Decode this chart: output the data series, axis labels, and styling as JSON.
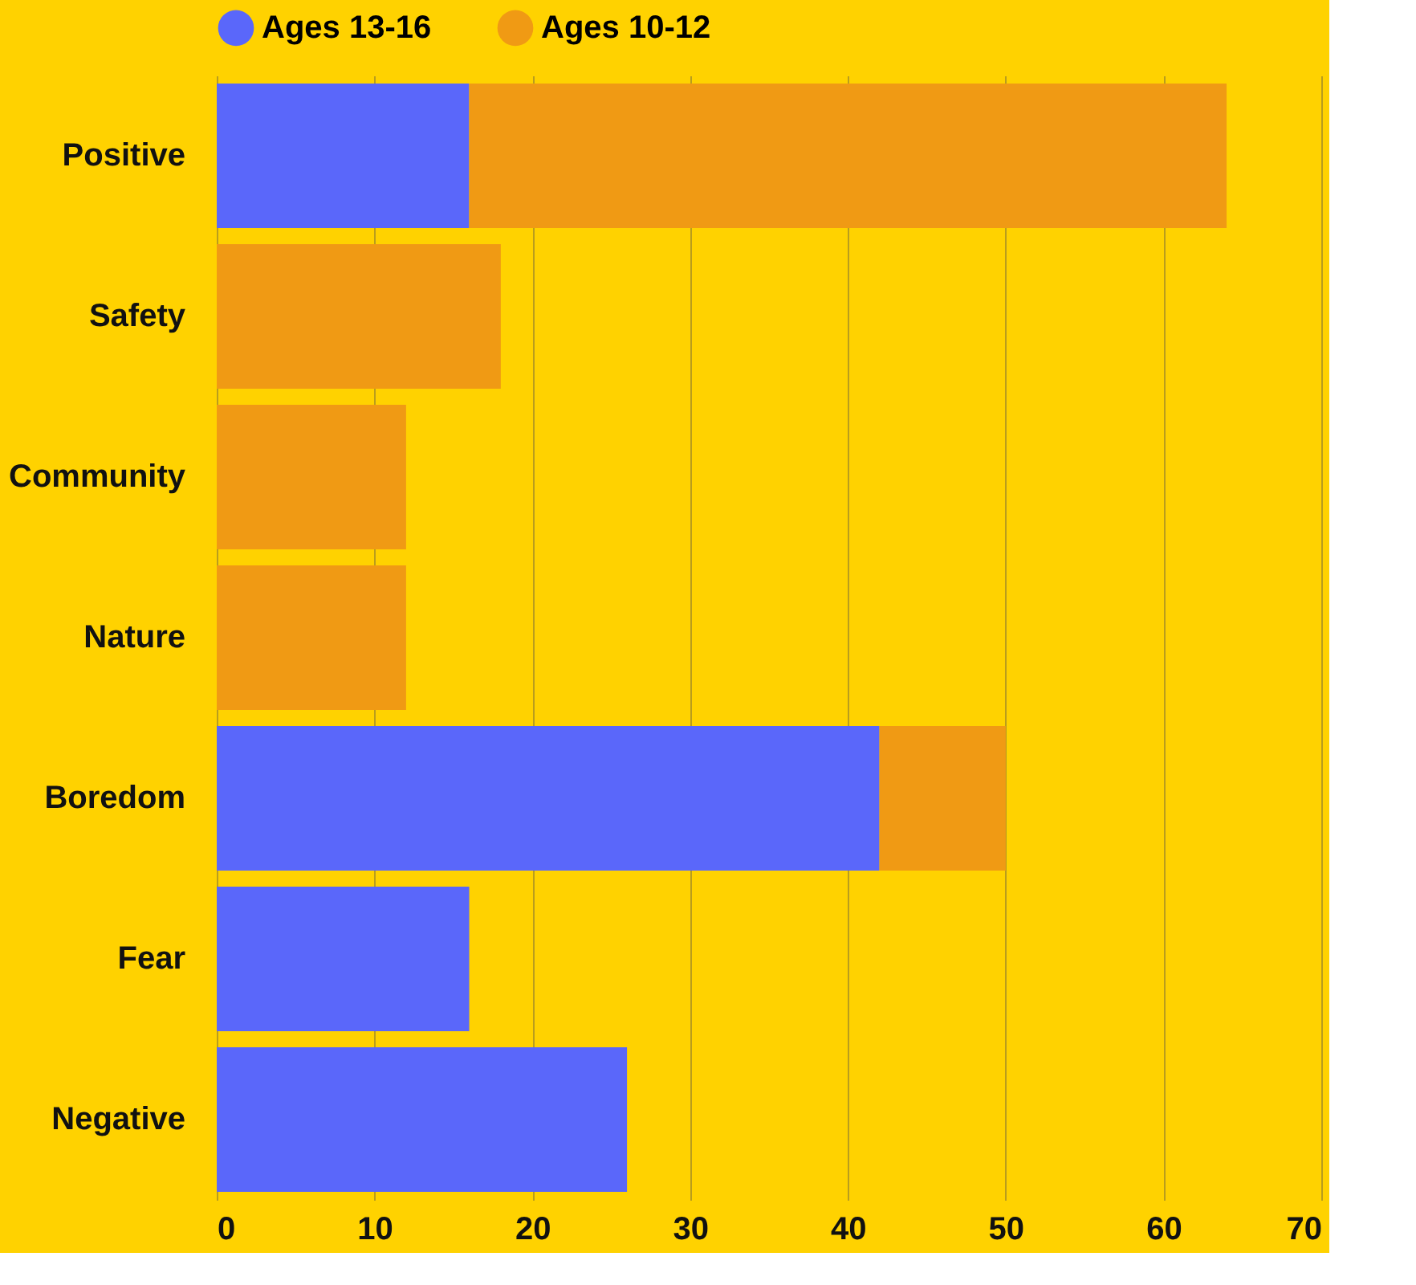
{
  "chart_data": {
    "type": "bar",
    "orientation": "horizontal",
    "stacked": true,
    "categories": [
      "Positive",
      "Safety",
      "Community",
      "Nature",
      "Boredom",
      "Fear",
      "Negative"
    ],
    "series": [
      {
        "name": "Ages 13-16",
        "color": "#5a67fa",
        "values": [
          16,
          null,
          null,
          null,
          42,
          16,
          26
        ]
      },
      {
        "name": "Ages 10-12",
        "color": "#f09a14",
        "values": [
          48,
          18,
          12,
          12,
          8,
          null,
          null
        ]
      }
    ],
    "xlim": [
      0,
      70
    ],
    "xticks": [
      0,
      10,
      20,
      30,
      40,
      50,
      60,
      70
    ],
    "grid": "x",
    "legend": "top"
  }
}
